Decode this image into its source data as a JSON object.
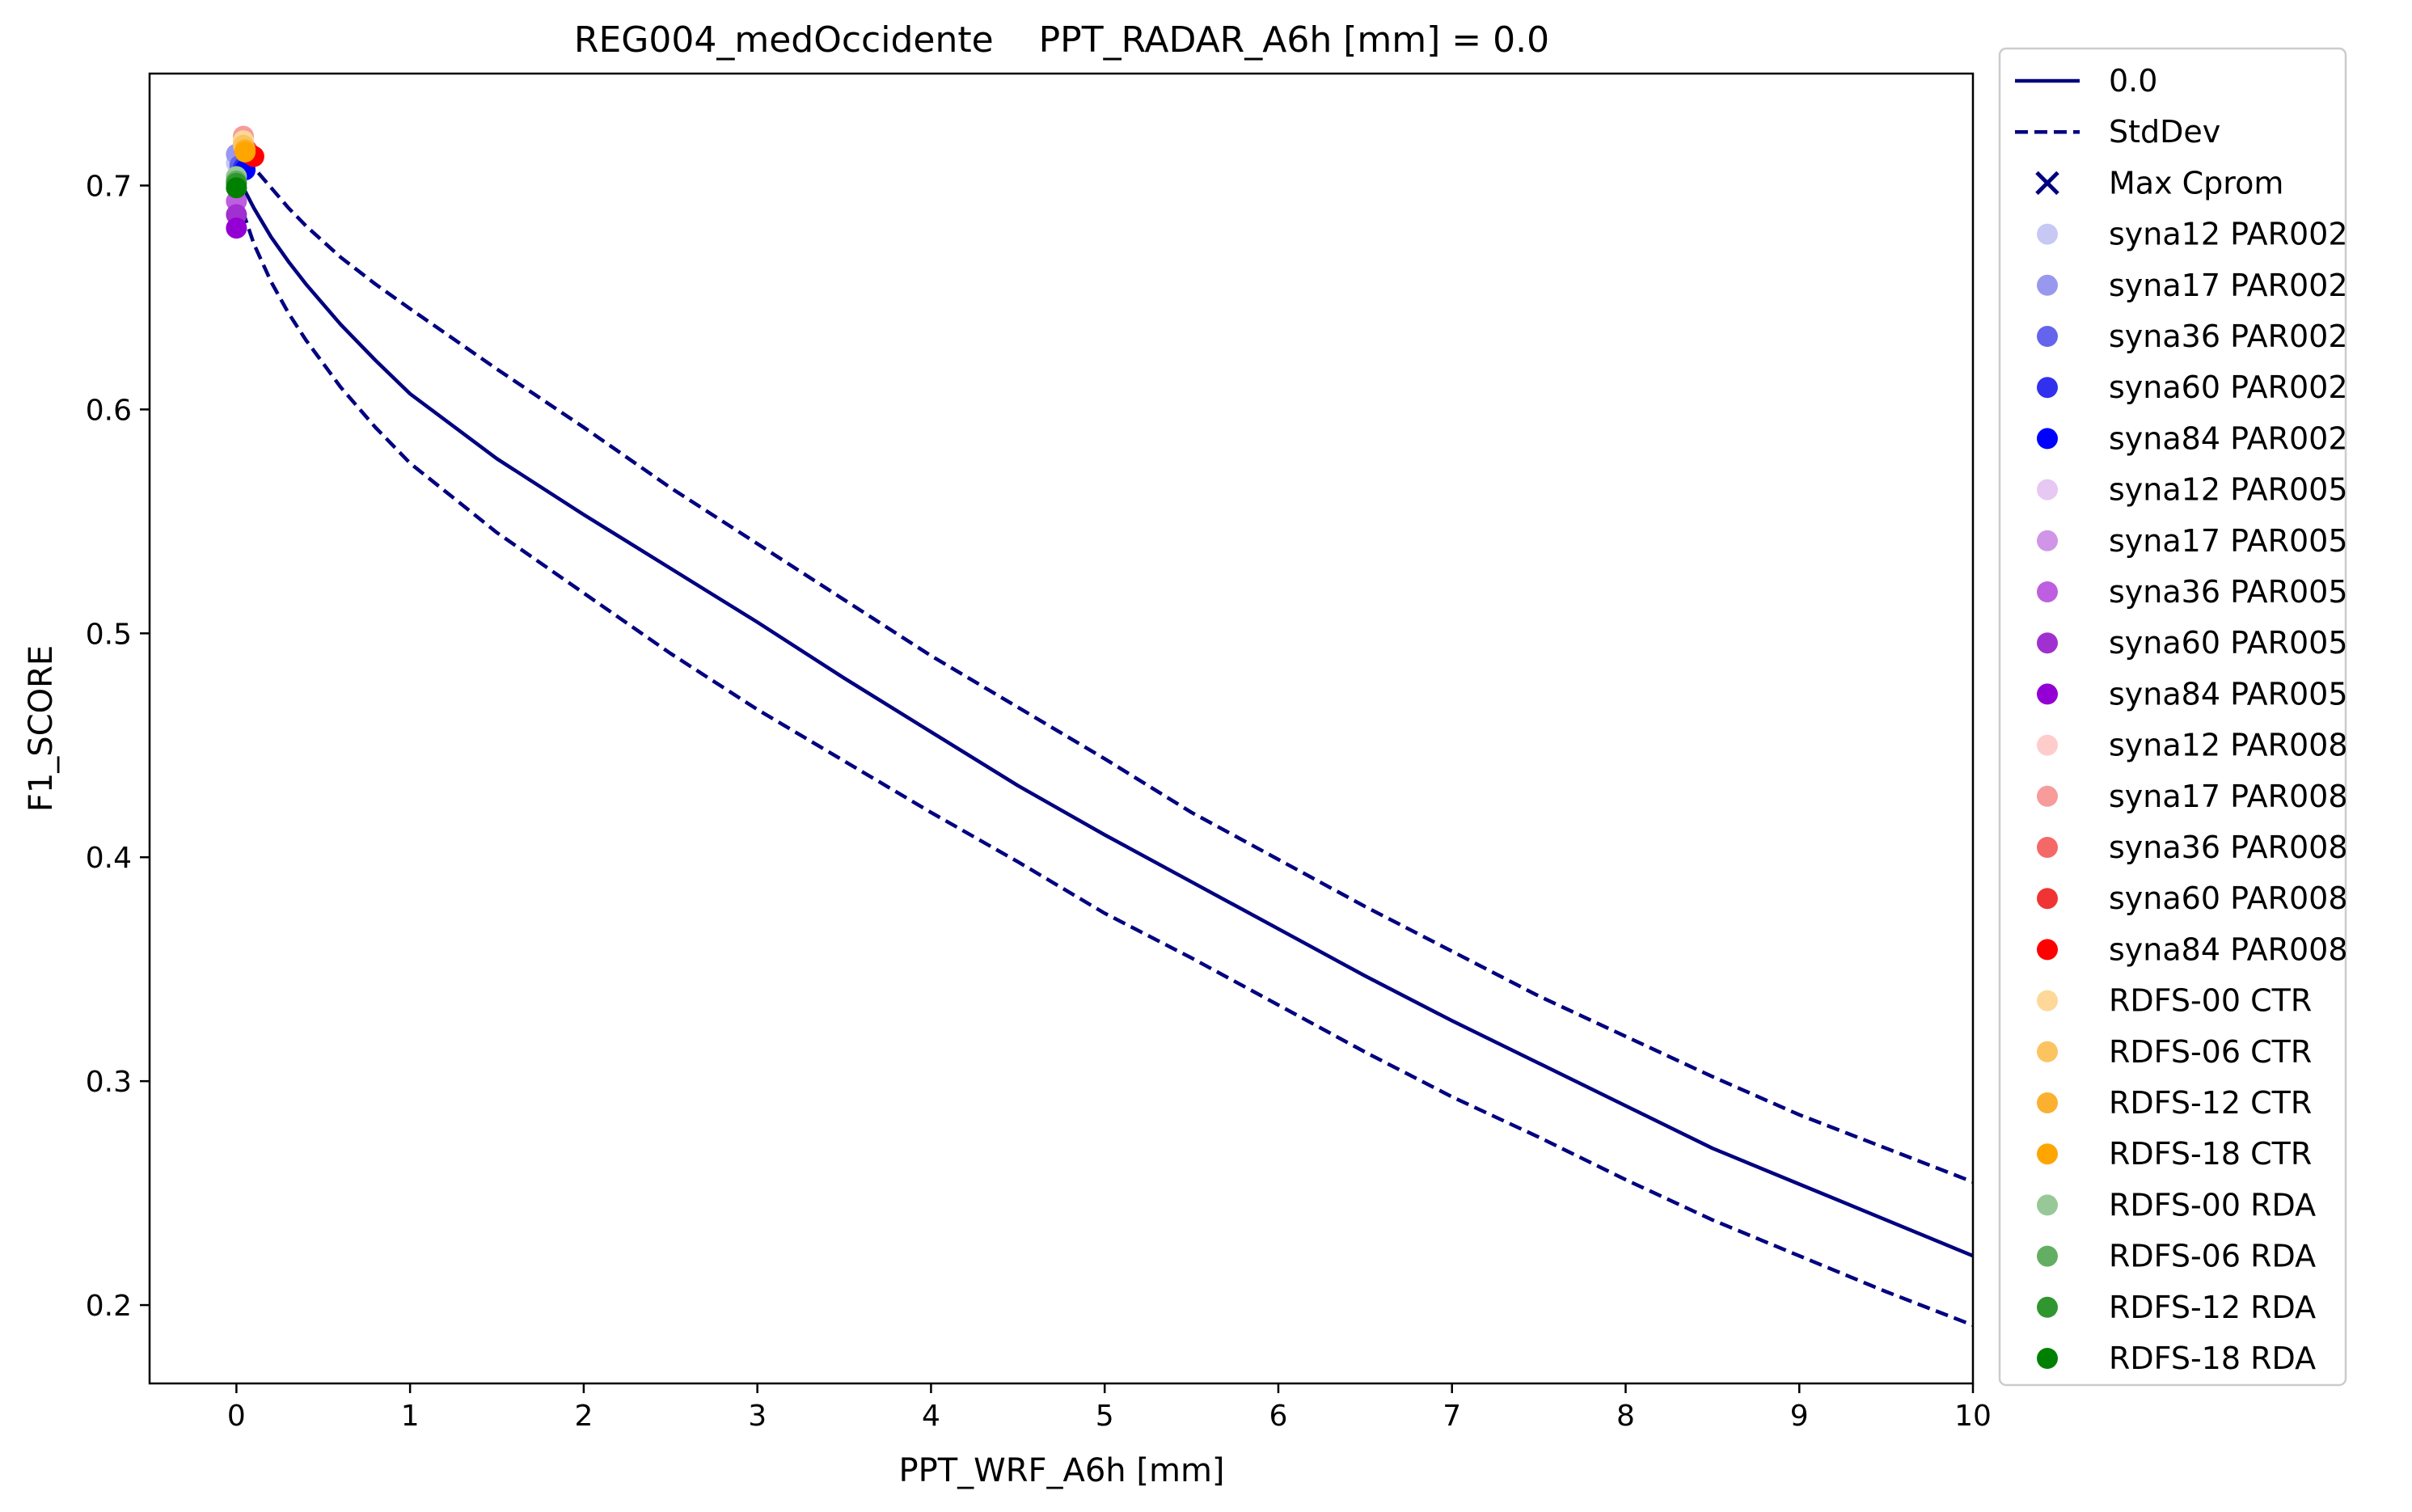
{
  "chart_data": {
    "type": "line",
    "title": "REG004_medOccidente    PPT_RADAR_A6h [mm] = 0.0",
    "xlabel": "PPT_WRF_A6h [mm]",
    "ylabel": "F1_SCORE",
    "xlim": [
      -0.5,
      10
    ],
    "ylim": [
      0.165,
      0.75
    ],
    "xticks": [
      0,
      1,
      2,
      3,
      4,
      5,
      6,
      7,
      8,
      9,
      10
    ],
    "yticks": [
      0.2,
      0.3,
      0.4,
      0.5,
      0.6,
      0.7
    ],
    "x_tick_labels": [
      "0",
      "1",
      "2",
      "3",
      "4",
      "5",
      "6",
      "7",
      "8",
      "9",
      "10"
    ],
    "y_tick_labels": [
      "0.2",
      "0.3",
      "0.4",
      "0.5",
      "0.6",
      "0.7"
    ],
    "grid": false,
    "legend_position": "outside-right",
    "series": [
      {
        "name": "0.0",
        "style": "solid",
        "color": "#000080",
        "x": [
          0,
          0.1,
          0.2,
          0.3,
          0.4,
          0.6,
          0.8,
          1,
          1.5,
          2,
          2.5,
          3,
          3.5,
          4,
          4.5,
          5,
          5.5,
          6,
          6.5,
          7,
          7.5,
          8,
          8.5,
          9,
          9.5,
          10
        ],
        "y": [
          0.705,
          0.69,
          0.677,
          0.666,
          0.656,
          0.638,
          0.622,
          0.607,
          0.578,
          0.553,
          0.529,
          0.505,
          0.48,
          0.456,
          0.432,
          0.41,
          0.389,
          0.368,
          0.347,
          0.327,
          0.308,
          0.289,
          0.27,
          0.254,
          0.238,
          0.222
        ]
      },
      {
        "name": "StdDev",
        "style": "dashed",
        "color": "#000080",
        "x": [
          0.05,
          0.1,
          0.2,
          0.3,
          0.4,
          0.6,
          0.8,
          1,
          1.5,
          2,
          2.5,
          3,
          3.5,
          4,
          4.5,
          5,
          5.5,
          6,
          6.5,
          7,
          7.5,
          8,
          8.5,
          9,
          9.5,
          10
        ],
        "y": [
          0.712,
          0.708,
          0.699,
          0.69,
          0.682,
          0.668,
          0.656,
          0.645,
          0.618,
          0.592,
          0.565,
          0.54,
          0.515,
          0.49,
          0.467,
          0.444,
          0.42,
          0.399,
          0.378,
          0.358,
          0.338,
          0.32,
          0.302,
          0.285,
          0.27,
          0.255
        ]
      },
      {
        "name": "",
        "style": "dashed",
        "color": "#000080",
        "x": [
          0,
          0.1,
          0.2,
          0.3,
          0.4,
          0.6,
          0.8,
          1,
          1.5,
          2,
          2.5,
          3,
          3.5,
          4,
          4.5,
          5,
          5.5,
          6,
          6.5,
          7,
          7.5,
          8,
          8.5,
          9,
          9.5,
          10
        ],
        "y": [
          0.697,
          0.674,
          0.657,
          0.643,
          0.631,
          0.61,
          0.592,
          0.576,
          0.545,
          0.518,
          0.491,
          0.466,
          0.443,
          0.42,
          0.398,
          0.375,
          0.355,
          0.334,
          0.313,
          0.293,
          0.275,
          0.256,
          0.238,
          0.222,
          0.206,
          0.191
        ]
      }
    ],
    "markers": [
      {
        "name": "syna12 PAR002",
        "color": "#c8c8f5",
        "x": 0.0,
        "y": 0.71
      },
      {
        "name": "syna17 PAR002",
        "color": "#9898ee",
        "x": 0.0,
        "y": 0.714
      },
      {
        "name": "syna36 PAR002",
        "color": "#6464ec",
        "x": 0.02,
        "y": 0.709
      },
      {
        "name": "syna60 PAR002",
        "color": "#3030ee",
        "x": 0.04,
        "y": 0.708
      },
      {
        "name": "syna84 PAR002",
        "color": "#0000ff",
        "x": 0.05,
        "y": 0.707
      },
      {
        "name": "syna12 PAR005",
        "color": "#e6c8f2",
        "x": 0.0,
        "y": 0.702
      },
      {
        "name": "syna17 PAR005",
        "color": "#d095e6",
        "x": 0.0,
        "y": 0.699
      },
      {
        "name": "syna36 PAR005",
        "color": "#be5ee0",
        "x": 0.0,
        "y": 0.693
      },
      {
        "name": "syna60 PAR005",
        "color": "#a030d0",
        "x": 0.0,
        "y": 0.687
      },
      {
        "name": "syna84 PAR005",
        "color": "#9400d3",
        "x": 0.0,
        "y": 0.681
      },
      {
        "name": "syna12 PAR008",
        "color": "#ffcccc",
        "x": 0.04,
        "y": 0.72
      },
      {
        "name": "syna17 PAR008",
        "color": "#f79b9b",
        "x": 0.04,
        "y": 0.722
      },
      {
        "name": "syna36 PAR008",
        "color": "#f56868",
        "x": 0.06,
        "y": 0.716
      },
      {
        "name": "syna60 PAR008",
        "color": "#f03434",
        "x": 0.08,
        "y": 0.714
      },
      {
        "name": "syna84 PAR008",
        "color": "#ff0000",
        "x": 0.1,
        "y": 0.713
      },
      {
        "name": "RDFS-00 CTR",
        "color": "#fdd898",
        "x": 0.04,
        "y": 0.72
      },
      {
        "name": "RDFS-06 CTR",
        "color": "#fcc460",
        "x": 0.04,
        "y": 0.718
      },
      {
        "name": "RDFS-12 CTR",
        "color": "#fbb030",
        "x": 0.05,
        "y": 0.716
      },
      {
        "name": "RDFS-18 CTR",
        "color": "#ffa500",
        "x": 0.05,
        "y": 0.715
      },
      {
        "name": "RDFS-00 RDA",
        "color": "#98c898",
        "x": 0.0,
        "y": 0.704
      },
      {
        "name": "RDFS-06 RDA",
        "color": "#64ae64",
        "x": 0.0,
        "y": 0.702
      },
      {
        "name": "RDFS-12 RDA",
        "color": "#309630",
        "x": 0.0,
        "y": 0.701
      },
      {
        "name": "RDFS-18 RDA",
        "color": "#008000",
        "x": 0.0,
        "y": 0.699
      }
    ],
    "legend": [
      {
        "label": "0.0",
        "kind": "solid-line",
        "color": "#000080"
      },
      {
        "label": "StdDev",
        "kind": "dashed-line",
        "color": "#000080"
      },
      {
        "label": "Max Cprom",
        "kind": "x-marker",
        "color": "#000080"
      },
      {
        "label": "syna12 PAR002",
        "kind": "dot",
        "color": "#c8c8f5"
      },
      {
        "label": "syna17 PAR002",
        "kind": "dot",
        "color": "#9898ee"
      },
      {
        "label": "syna36 PAR002",
        "kind": "dot",
        "color": "#6464ec"
      },
      {
        "label": "syna60 PAR002",
        "kind": "dot",
        "color": "#3030ee"
      },
      {
        "label": "syna84 PAR002",
        "kind": "dot",
        "color": "#0000ff"
      },
      {
        "label": "syna12 PAR005",
        "kind": "dot",
        "color": "#e6c8f2"
      },
      {
        "label": "syna17 PAR005",
        "kind": "dot",
        "color": "#d095e6"
      },
      {
        "label": "syna36 PAR005",
        "kind": "dot",
        "color": "#be5ee0"
      },
      {
        "label": "syna60 PAR005",
        "kind": "dot",
        "color": "#a030d0"
      },
      {
        "label": "syna84 PAR005",
        "kind": "dot",
        "color": "#9400d3"
      },
      {
        "label": "syna12 PAR008",
        "kind": "dot",
        "color": "#ffcccc"
      },
      {
        "label": "syna17 PAR008",
        "kind": "dot",
        "color": "#f79b9b"
      },
      {
        "label": "syna36 PAR008",
        "kind": "dot",
        "color": "#f56868"
      },
      {
        "label": "syna60 PAR008",
        "kind": "dot",
        "color": "#f03434"
      },
      {
        "label": "syna84 PAR008",
        "kind": "dot",
        "color": "#ff0000"
      },
      {
        "label": " RDFS-00 CTR",
        "kind": "dot",
        "color": "#fdd898"
      },
      {
        "label": " RDFS-06 CTR",
        "kind": "dot",
        "color": "#fcc460"
      },
      {
        "label": " RDFS-12 CTR",
        "kind": "dot",
        "color": "#fbb030"
      },
      {
        "label": " RDFS-18 CTR",
        "kind": "dot",
        "color": "#ffa500"
      },
      {
        "label": " RDFS-00 RDA",
        "kind": "dot",
        "color": "#98c898"
      },
      {
        "label": " RDFS-06 RDA",
        "kind": "dot",
        "color": "#64ae64"
      },
      {
        "label": " RDFS-12 RDA",
        "kind": "dot",
        "color": "#309630"
      },
      {
        "label": " RDFS-18 RDA",
        "kind": "dot",
        "color": "#008000"
      }
    ]
  }
}
